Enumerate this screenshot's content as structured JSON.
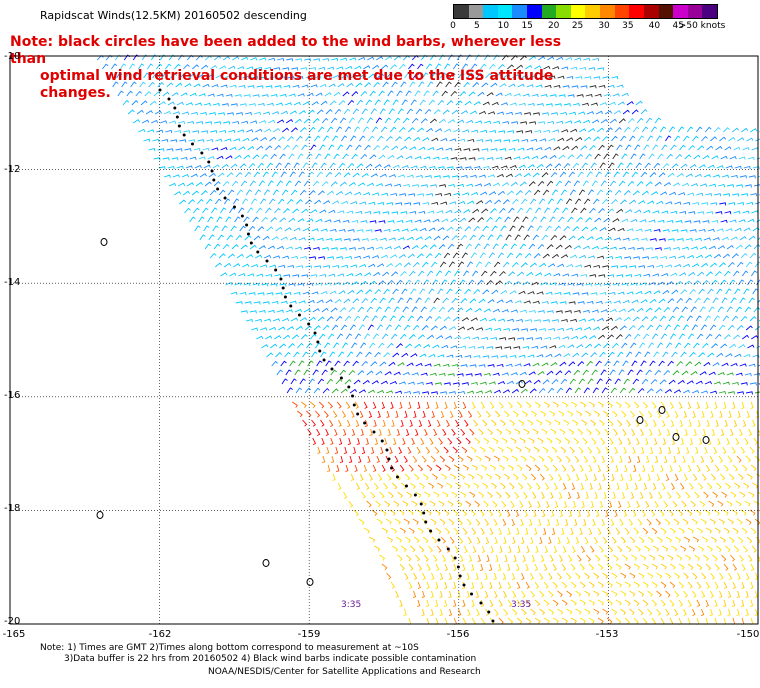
{
  "header": {
    "title": "Rapidscat Winds(12.5KM) 20160502 descending",
    "note_line1": "Note: black circles have been added to the wind barbs, wherever less than",
    "note_line2": "optimal wind retrieval conditions are met due to the ISS attitude changes."
  },
  "legend": {
    "colors": [
      "#3a3a3a",
      "#9a9a9a",
      "#00c8ff",
      "#00e6ff",
      "#1a8cff",
      "#0000ff",
      "#22aa22",
      "#88dd00",
      "#ffff00",
      "#ffcc00",
      "#ff8800",
      "#ff4400",
      "#ff0000",
      "#aa0000",
      "#551100",
      "#cc00cc",
      "#990099",
      "#4b0082"
    ],
    "tick_labels": [
      "0",
      "5",
      "10",
      "15",
      "20",
      "25",
      "30",
      "35",
      "40",
      "45",
      ">50 knots"
    ],
    "tick_positions": [
      0.0,
      0.09,
      0.19,
      0.28,
      0.38,
      0.47,
      0.57,
      0.66,
      0.76,
      0.85,
      0.97
    ]
  },
  "axes": {
    "lat_labels": [
      "-10",
      "-12",
      "-14",
      "-16",
      "-18",
      "-20"
    ],
    "lon_labels": [
      "-165",
      "-162",
      "-159",
      "-156",
      "-153",
      "-150"
    ],
    "lat_range": [
      -20,
      -10
    ],
    "lon_range": [
      -165,
      -150
    ]
  },
  "times": [
    "3:35",
    "3:35"
  ],
  "footer": {
    "line1": "Note: 1) Times are GMT 2)Times along bottom correspond to measurement at ~10S",
    "line2": "3)Data buffer is 22 hrs from 20160502 4) Black wind barbs indicate possible contamination",
    "credit": "NOAA/NESDIS/Center for Satellite Applications and Research"
  }
}
